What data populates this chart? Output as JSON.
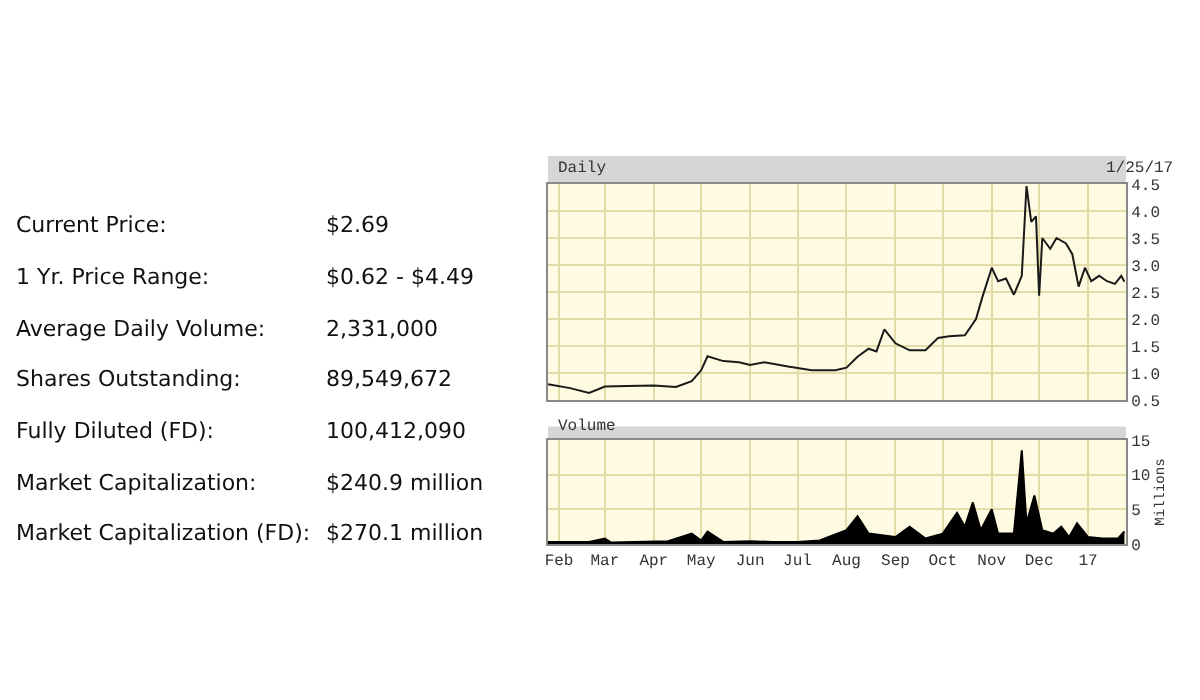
{
  "chart_data": [
    {
      "type": "other",
      "annotations": [
        "Current Price:",
        "$2.69",
        "1 Yr. Price Range:",
        "$0.62 - $4.49",
        "Average Daily Volume:",
        "2,331,000",
        "Shares Outstanding:",
        "89,549,672",
        "Fully Diluted (FD):",
        "100,412,090",
        "Market Capitalization:",
        "$240.9 million",
        "Market Capitalization (FD):",
        "$270.1 million"
      ]
    },
    {
      "type": "line",
      "title": "Daily",
      "annotations": [
        "1/25/17"
      ],
      "x": [
        "2016-01-25",
        "2016-02-08",
        "2016-02-20",
        "2016-03-01",
        "2016-03-15",
        "2016-04-01",
        "2016-04-15",
        "2016-04-25",
        "2016-05-01",
        "2016-05-05",
        "2016-05-15",
        "2016-05-25",
        "2016-06-01",
        "2016-06-10",
        "2016-06-25",
        "2016-07-10",
        "2016-07-25",
        "2016-08-01",
        "2016-08-08",
        "2016-08-15",
        "2016-08-20",
        "2016-08-25",
        "2016-09-01",
        "2016-09-10",
        "2016-09-20",
        "2016-09-28",
        "2016-10-05",
        "2016-10-15",
        "2016-10-22",
        "2016-10-26",
        "2016-11-01",
        "2016-11-05",
        "2016-11-10",
        "2016-11-15",
        "2016-11-20",
        "2016-11-23",
        "2016-11-26",
        "2016-11-29",
        "2016-12-01",
        "2016-12-03",
        "2016-12-08",
        "2016-12-12",
        "2016-12-18",
        "2016-12-22",
        "2016-12-26",
        "2016-12-30",
        "2017-01-03",
        "2017-01-08",
        "2017-01-13",
        "2017-01-18",
        "2017-01-22",
        "2017-01-24"
      ],
      "series": [
        {
          "color": "#1a1a1a",
          "values": [
            0.79,
            0.72,
            0.63,
            0.75,
            0.76,
            0.77,
            0.74,
            0.85,
            1.05,
            1.31,
            1.22,
            1.2,
            1.15,
            1.2,
            1.12,
            1.05,
            1.05,
            1.1,
            1.3,
            1.45,
            1.4,
            1.81,
            1.55,
            1.42,
            1.42,
            1.65,
            1.68,
            1.7,
            2.0,
            2.4,
            2.95,
            2.7,
            2.75,
            2.45,
            2.8,
            4.46,
            3.8,
            3.9,
            2.43,
            3.5,
            3.3,
            3.5,
            3.4,
            3.2,
            2.6,
            2.95,
            2.7,
            2.8,
            2.7,
            2.65,
            2.8,
            2.69
          ]
        }
      ],
      "xlim": [
        "2016-01-25",
        "2017-01-25"
      ],
      "xticks": [
        {
          "value": "2016-02-01",
          "label": null
        },
        {
          "value": "2016-03-01",
          "label": null
        },
        {
          "value": "2016-04-01",
          "label": null
        },
        {
          "value": "2016-05-01",
          "label": null
        },
        {
          "value": "2016-06-01",
          "label": null
        },
        {
          "value": "2016-07-01",
          "label": null
        },
        {
          "value": "2016-08-01",
          "label": null
        },
        {
          "value": "2016-09-01",
          "label": null
        },
        {
          "value": "2016-10-01",
          "label": null
        },
        {
          "value": "2016-11-01",
          "label": null
        },
        {
          "value": "2016-12-01",
          "label": null
        },
        {
          "value": "2017-01-01",
          "label": null
        }
      ],
      "ylim": [
        0.5,
        4.5
      ],
      "yticks": [
        {
          "value": 0.5,
          "label": "0.5"
        },
        {
          "value": 1,
          "label": "1.0"
        },
        {
          "value": 1.5,
          "label": "1.5"
        },
        {
          "value": 2,
          "label": "2.0"
        },
        {
          "value": 2.5,
          "label": "2.5"
        },
        {
          "value": 3,
          "label": "3.0"
        },
        {
          "value": 3.5,
          "label": "3.5"
        },
        {
          "value": 4,
          "label": "4.0"
        },
        {
          "value": 4.5,
          "label": "4.5"
        }
      ],
      "grid": true,
      "tick_labels": "y"
    },
    {
      "type": "area",
      "title": "Volume",
      "ylabel": "Millions",
      "x": [
        "2016-01-25",
        "2016-02-20",
        "2016-03-01",
        "2016-03-05",
        "2016-04-10",
        "2016-04-25",
        "2016-05-01",
        "2016-05-05",
        "2016-05-15",
        "2016-06-01",
        "2016-06-15",
        "2016-07-01",
        "2016-07-15",
        "2016-08-01",
        "2016-08-08",
        "2016-08-15",
        "2016-09-01",
        "2016-09-10",
        "2016-09-20",
        "2016-10-01",
        "2016-10-10",
        "2016-10-15",
        "2016-10-20",
        "2016-10-25",
        "2016-11-01",
        "2016-11-05",
        "2016-11-15",
        "2016-11-20",
        "2016-11-23",
        "2016-11-28",
        "2016-12-03",
        "2016-12-10",
        "2016-12-15",
        "2016-12-20",
        "2016-12-25",
        "2017-01-01",
        "2017-01-10",
        "2017-01-20",
        "2017-01-24"
      ],
      "series": [
        {
          "color": "#000000",
          "values": [
            0.3,
            0.3,
            0.8,
            0.2,
            0.4,
            1.5,
            0.5,
            1.8,
            0.3,
            0.4,
            0.3,
            0.3,
            0.5,
            2.0,
            4.0,
            1.5,
            1.0,
            2.5,
            0.8,
            1.5,
            4.5,
            2.5,
            6.0,
            2.0,
            5.0,
            1.5,
            1.5,
            13.5,
            3.0,
            7.0,
            2.0,
            1.5,
            2.5,
            1.0,
            3.0,
            1.0,
            0.8,
            0.8,
            1.8
          ]
        }
      ],
      "xlim": [
        "2016-01-25",
        "2017-01-25"
      ],
      "xticks": [
        {
          "value": "2016-02-01",
          "label": "Feb"
        },
        {
          "value": "2016-03-01",
          "label": "Mar"
        },
        {
          "value": "2016-04-01",
          "label": "Apr"
        },
        {
          "value": "2016-05-01",
          "label": "May"
        },
        {
          "value": "2016-06-01",
          "label": "Jun"
        },
        {
          "value": "2016-07-01",
          "label": "Jul"
        },
        {
          "value": "2016-08-01",
          "label": "Aug"
        },
        {
          "value": "2016-09-01",
          "label": "Sep"
        },
        {
          "value": "2016-10-01",
          "label": "Oct"
        },
        {
          "value": "2016-11-01",
          "label": "Nov"
        },
        {
          "value": "2016-12-01",
          "label": "Dec"
        },
        {
          "value": "2017-01-01",
          "label": "17"
        }
      ],
      "ylim": [
        0,
        15
      ],
      "yticks": [
        0,
        5,
        10,
        15
      ],
      "grid": true
    }
  ]
}
